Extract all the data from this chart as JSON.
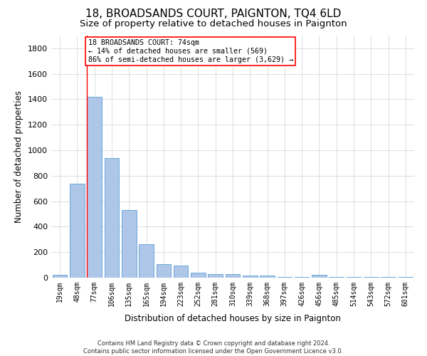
{
  "title": "18, BROADSANDS COURT, PAIGNTON, TQ4 6LD",
  "subtitle": "Size of property relative to detached houses in Paignton",
  "xlabel": "Distribution of detached houses by size in Paignton",
  "ylabel": "Number of detached properties",
  "categories": [
    "19sqm",
    "48sqm",
    "77sqm",
    "106sqm",
    "135sqm",
    "165sqm",
    "194sqm",
    "223sqm",
    "252sqm",
    "281sqm",
    "310sqm",
    "339sqm",
    "368sqm",
    "397sqm",
    "426sqm",
    "456sqm",
    "485sqm",
    "514sqm",
    "543sqm",
    "572sqm",
    "601sqm"
  ],
  "bar_values": [
    25,
    740,
    1420,
    940,
    530,
    265,
    105,
    95,
    40,
    28,
    28,
    15,
    15,
    5,
    5,
    20,
    5,
    5,
    5,
    5,
    5
  ],
  "bar_color": "#aec6e8",
  "bar_edge_color": "#5a9fd4",
  "grid_color": "#d0d0d0",
  "ylim": [
    0,
    1900
  ],
  "yticks": [
    0,
    200,
    400,
    600,
    800,
    1000,
    1200,
    1400,
    1600,
    1800
  ],
  "red_line_index": 2,
  "annotation_line1": "18 BROADSANDS COURT: 74sqm",
  "annotation_line2": "← 14% of detached houses are smaller (569)",
  "annotation_line3": "86% of semi-detached houses are larger (3,629) →",
  "footer_line1": "Contains HM Land Registry data © Crown copyright and database right 2024.",
  "footer_line2": "Contains public sector information licensed under the Open Government Licence v3.0.",
  "background_color": "#ffffff",
  "title_fontsize": 11,
  "subtitle_fontsize": 9.5
}
